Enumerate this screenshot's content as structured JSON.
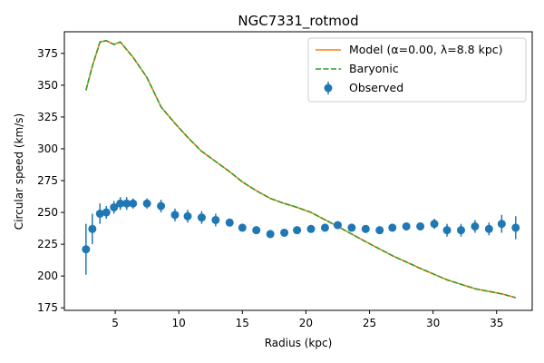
{
  "chart_data": {
    "type": "line",
    "title": "NGC7331_rotmod",
    "xlabel": "Radius (kpc)",
    "ylabel": "Circular speed (km/s)",
    "xlim": [
      1.0,
      37.8
    ],
    "ylim": [
      173,
      392
    ],
    "xticks": [
      5,
      10,
      15,
      20,
      25,
      30,
      35
    ],
    "yticks": [
      175,
      200,
      225,
      250,
      275,
      300,
      325,
      350,
      375
    ],
    "grid": false,
    "legend_position": "top-right",
    "legend": [
      {
        "label": "Model (α=0.00, λ=8.8 kpc)",
        "kind": "line",
        "color": "#ff7f0e"
      },
      {
        "label": "Baryonic",
        "kind": "dashed",
        "color": "#2ca02c"
      },
      {
        "label": "Observed",
        "kind": "errorbar",
        "color": "#1f77b4"
      }
    ],
    "series": [
      {
        "name": "Model (α=0.00, λ=8.8 kpc)",
        "color": "#ff7f0e",
        "style": "solid",
        "x": [
          2.7,
          3.2,
          3.8,
          4.3,
          4.9,
          5.4,
          6.4,
          7.5,
          8.6,
          9.7,
          10.7,
          11.8,
          12.9,
          14.0,
          15.0,
          16.1,
          17.2,
          18.3,
          19.3,
          20.4,
          22.5,
          24.7,
          26.8,
          29.0,
          31.1,
          33.3,
          35.4,
          36.5
        ],
        "y": [
          346,
          365,
          384,
          385,
          382,
          384,
          372,
          356,
          333,
          320,
          309,
          298,
          290,
          282,
          274,
          267,
          261,
          257,
          254,
          250,
          239,
          227,
          216,
          206,
          197,
          190,
          186,
          183
        ]
      },
      {
        "name": "Baryonic",
        "color": "#2ca02c",
        "style": "dashed",
        "x": [
          2.7,
          3.2,
          3.8,
          4.3,
          4.9,
          5.4,
          6.4,
          7.5,
          8.6,
          9.7,
          10.7,
          11.8,
          12.9,
          14.0,
          15.0,
          16.1,
          17.2,
          18.3,
          19.3,
          20.4,
          22.5,
          24.7,
          26.8,
          29.0,
          31.1,
          33.3,
          35.4,
          36.5
        ],
        "y": [
          346,
          365,
          384,
          385,
          382,
          384,
          372,
          356,
          333,
          320,
          309,
          298,
          290,
          282,
          274,
          267,
          261,
          257,
          254,
          250,
          239,
          227,
          216,
          206,
          197,
          190,
          186,
          183
        ]
      },
      {
        "name": "Observed",
        "color": "#1f77b4",
        "style": "errorbar",
        "x": [
          2.7,
          3.2,
          3.8,
          4.3,
          4.9,
          5.4,
          5.9,
          6.4,
          7.5,
          8.6,
          9.7,
          10.7,
          11.8,
          12.9,
          14.0,
          15.0,
          16.1,
          17.2,
          18.3,
          19.3,
          20.4,
          21.5,
          22.5,
          23.6,
          24.7,
          25.8,
          26.8,
          27.9,
          29.0,
          30.1,
          31.1,
          32.2,
          33.3,
          34.4,
          35.4,
          36.5
        ],
        "y": [
          221,
          237,
          249,
          250,
          254,
          257,
          257,
          257,
          257,
          255,
          248,
          247,
          246,
          244,
          242,
          238,
          236,
          233,
          234,
          236,
          237,
          238,
          240,
          238,
          237,
          236,
          238,
          239,
          239,
          241,
          236,
          236,
          239,
          237,
          241,
          238
        ],
        "err": [
          20,
          12,
          8,
          5,
          5,
          5,
          5,
          4,
          4,
          5,
          5,
          5,
          5,
          5,
          3,
          3,
          3,
          3,
          3,
          3,
          3,
          3,
          3,
          3,
          3,
          3,
          3,
          3,
          3,
          4,
          5,
          5,
          5,
          5,
          7,
          9
        ]
      }
    ]
  }
}
